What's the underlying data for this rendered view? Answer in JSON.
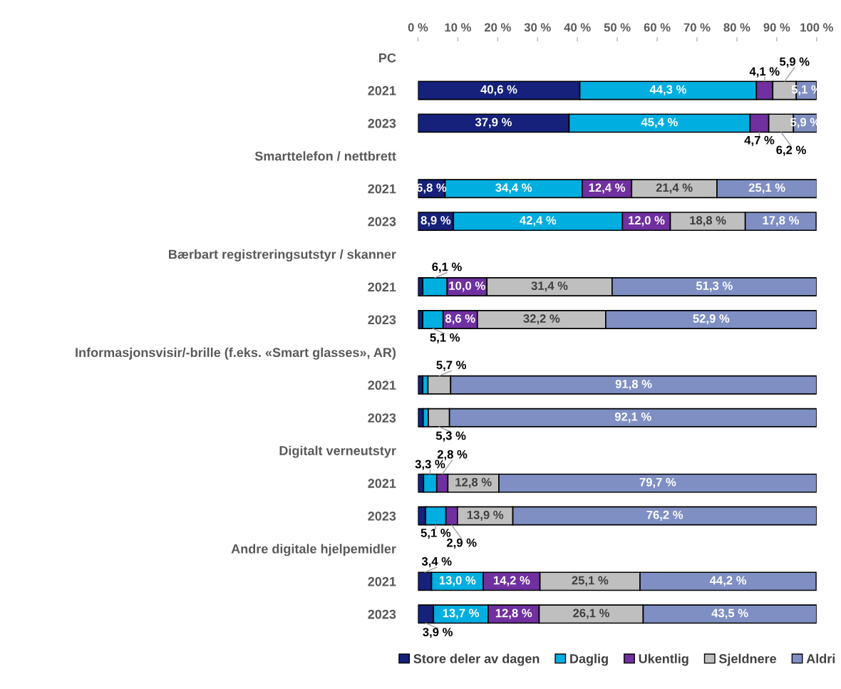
{
  "chart_data": {
    "type": "bar",
    "orientation": "horizontal",
    "stacked": true,
    "categories": [
      "PC",
      "2021",
      "2023",
      "Smarttelefon / nettbrett",
      "2021",
      "2023",
      "Bærbart registreringsutstyr / skanner",
      "2021",
      "2023",
      "Informasjonsvisir/-brille (f.eks. «Smart glasses», AR)",
      "2021",
      "2023",
      "Digitalt verneutstyr",
      "2021",
      "2023",
      "Andre digitale hjelpemidler",
      "2021",
      "2023"
    ],
    "series": [
      {
        "name": "Store deler av dagen",
        "color": "#15217a",
        "values": [
          null,
          40.6,
          37.9,
          null,
          6.8,
          8.9,
          null,
          1.2,
          1.2,
          null,
          1.2,
          1.3,
          null,
          1.4,
          1.9,
          null,
          3.4,
          3.9
        ],
        "value_labels": [
          null,
          "40,6 %",
          "37,9 %",
          null,
          "6,8 %",
          "8,9 %",
          null,
          null,
          null,
          null,
          null,
          null,
          null,
          null,
          null,
          null,
          "3,4 %",
          "3,9 %"
        ]
      },
      {
        "name": "Daglig",
        "color": "#00aee0",
        "values": [
          null,
          44.3,
          45.4,
          null,
          34.4,
          42.4,
          null,
          6.1,
          5.1,
          null,
          1.3,
          1.3,
          null,
          3.3,
          5.1,
          null,
          13.0,
          13.7
        ],
        "value_labels": [
          null,
          "44,3 %",
          "45,4 %",
          null,
          "34,4 %",
          "42,4 %",
          null,
          "6,1 %",
          "5,1 %",
          null,
          null,
          null,
          null,
          "3,3 %",
          "5,1 %",
          null,
          "13,0 %",
          "13,7 %"
        ]
      },
      {
        "name": "Ukentlig",
        "color": "#7030a0",
        "values": [
          null,
          4.1,
          4.7,
          null,
          12.4,
          12.0,
          null,
          10.0,
          8.6,
          null,
          null,
          null,
          null,
          2.8,
          2.9,
          null,
          14.2,
          12.8
        ],
        "value_labels": [
          null,
          "4,1 %",
          "4,7 %",
          null,
          "12,4 %",
          "12,0 %",
          null,
          "10,0 %",
          "8,6 %",
          null,
          null,
          null,
          null,
          "2,8 %",
          "2,9 %",
          null,
          "14,2 %",
          "12,8 %"
        ]
      },
      {
        "name": "Sjeldnere",
        "color": "#bfbfbf",
        "values": [
          null,
          5.9,
          6.2,
          null,
          21.4,
          18.8,
          null,
          31.4,
          32.2,
          null,
          5.7,
          5.3,
          null,
          12.8,
          13.9,
          null,
          25.1,
          26.1
        ],
        "value_labels": [
          null,
          "5,9 %",
          "6,2 %",
          null,
          "21,4 %",
          "18,8 %",
          null,
          "31,4 %",
          "32,2 %",
          null,
          "5,7 %",
          "5,3 %",
          null,
          "12,8 %",
          "13,9 %",
          null,
          "25,1 %",
          "26,1 %"
        ]
      },
      {
        "name": "Aldri",
        "color": "#7f8fc4",
        "values": [
          null,
          5.1,
          5.9,
          null,
          25.1,
          17.8,
          null,
          51.3,
          52.9,
          null,
          91.8,
          92.1,
          null,
          79.7,
          76.2,
          null,
          44.2,
          43.5
        ],
        "value_labels": [
          null,
          "5,1 %",
          "5,9 %",
          null,
          "25,1 %",
          "17,8 %",
          null,
          "51,3 %",
          "52,9 %",
          null,
          "91,8 %",
          "92,1 %",
          null,
          "79,7 %",
          "76,2 %",
          null,
          "44,2 %",
          "43,5 %"
        ]
      }
    ],
    "xlim": [
      0,
      100
    ],
    "xticks": [
      {
        "value": 0,
        "label": "0 %"
      },
      {
        "value": 10,
        "label": "10 %"
      },
      {
        "value": 20,
        "label": "20 %"
      },
      {
        "value": 30,
        "label": "30 %"
      },
      {
        "value": 40,
        "label": "40 %"
      },
      {
        "value": 50,
        "label": "50 %"
      },
      {
        "value": 60,
        "label": "60 %"
      },
      {
        "value": 70,
        "label": "70 %"
      },
      {
        "value": 80,
        "label": "80 %"
      },
      {
        "value": 90,
        "label": "90 %"
      },
      {
        "value": 100,
        "label": "100 %"
      }
    ],
    "grid": false,
    "legend": "bottom"
  }
}
